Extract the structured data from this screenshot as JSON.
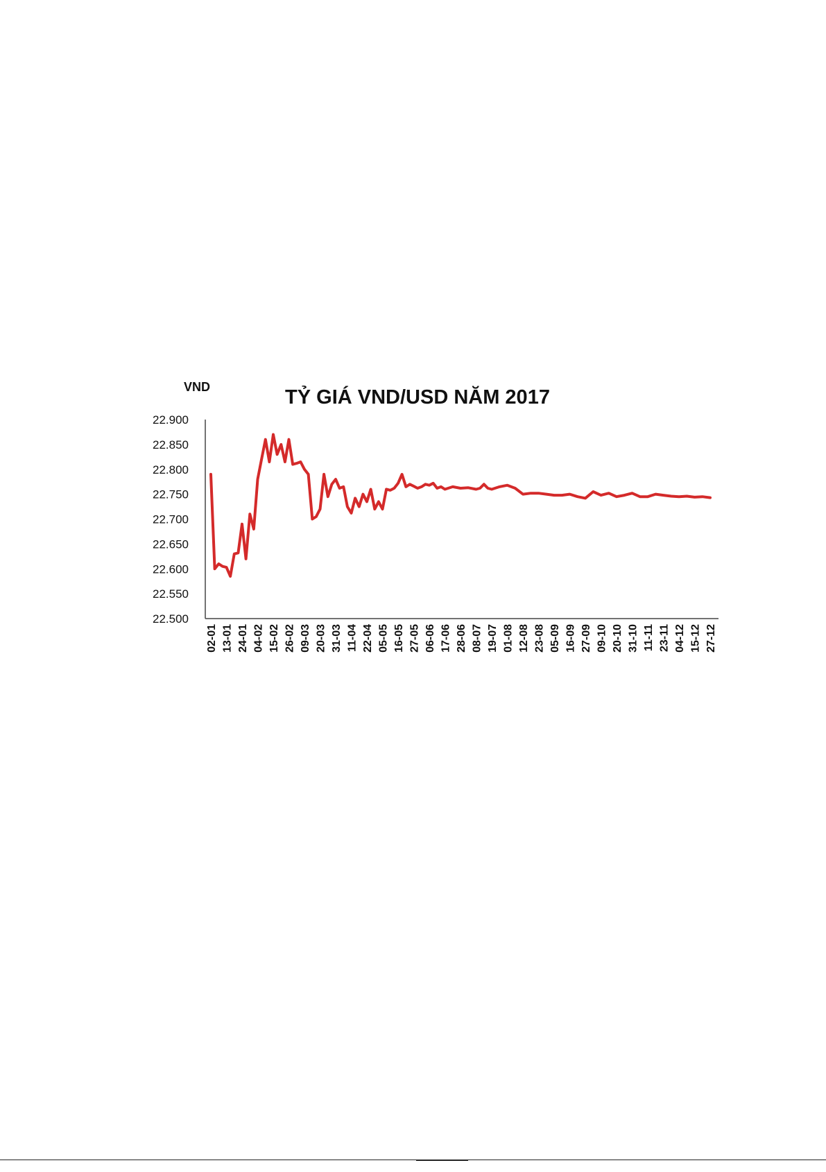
{
  "chart_data": {
    "type": "line",
    "title": "TỶ GIÁ VND/USD NĂM 2017",
    "ylabel": "VND",
    "xlabel": "",
    "ylim": [
      22500,
      22900
    ],
    "yticks": [
      22500,
      22550,
      22600,
      22650,
      22700,
      22750,
      22800,
      22850,
      22900
    ],
    "ytick_labels": [
      "22.500",
      "22.550",
      "22.600",
      "22.650",
      "22.700",
      "22.750",
      "22.800",
      "22.850",
      "22.900"
    ],
    "categories": [
      "02-01",
      "13-01",
      "24-01",
      "04-02",
      "15-02",
      "26-02",
      "09-03",
      "20-03",
      "31-03",
      "11-04",
      "22-04",
      "05-05",
      "16-05",
      "27-05",
      "06-06",
      "17-06",
      "28-06",
      "08-07",
      "19-07",
      "01-08",
      "12-08",
      "23-08",
      "05-09",
      "16-09",
      "27-09",
      "09-10",
      "20-10",
      "31-10",
      "11-11",
      "23-11",
      "04-12",
      "15-12",
      "27-12"
    ],
    "grid": false,
    "legend": "none",
    "series": [
      {
        "color": "#d42a2a",
        "x": [
          0,
          0.25,
          0.5,
          0.75,
          1,
          1.25,
          1.5,
          1.75,
          2,
          2.25,
          2.5,
          2.75,
          3,
          3.25,
          3.5,
          3.75,
          4,
          4.25,
          4.5,
          4.75,
          5,
          5.25,
          5.5,
          5.75,
          6,
          6.25,
          6.5,
          6.75,
          7,
          7.25,
          7.5,
          7.75,
          8,
          8.25,
          8.5,
          8.75,
          9,
          9.25,
          9.5,
          9.75,
          10,
          10.25,
          10.5,
          10.75,
          11,
          11.25,
          11.5,
          11.75,
          12,
          12.25,
          12.5,
          12.75,
          13,
          13.25,
          13.5,
          13.75,
          14,
          14.25,
          14.5,
          14.75,
          15,
          15.5,
          16,
          16.5,
          17,
          17.25,
          17.5,
          17.75,
          18,
          18.5,
          19,
          19.5,
          20,
          20.5,
          21,
          21.5,
          22,
          22.5,
          23,
          23.5,
          24,
          24.5,
          25,
          25.5,
          26,
          26.5,
          27,
          27.5,
          28,
          28.5,
          29,
          29.5,
          30,
          30.5,
          31,
          31.5,
          32
        ],
        "values": [
          22790,
          22600,
          22610,
          22605,
          22603,
          22585,
          22630,
          22632,
          22690,
          22620,
          22710,
          22680,
          22780,
          22820,
          22860,
          22815,
          22870,
          22830,
          22850,
          22815,
          22860,
          22810,
          22812,
          22815,
          22800,
          22790,
          22700,
          22705,
          22720,
          22790,
          22745,
          22770,
          22780,
          22762,
          22765,
          22725,
          22712,
          22742,
          22725,
          22750,
          22735,
          22760,
          22720,
          22735,
          22720,
          22760,
          22758,
          22762,
          22772,
          22790,
          22765,
          22770,
          22766,
          22762,
          22765,
          22770,
          22768,
          22772,
          22762,
          22765,
          22760,
          22765,
          22762,
          22763,
          22760,
          22762,
          22770,
          22762,
          22760,
          22765,
          22768,
          22762,
          22750,
          22752,
          22752,
          22750,
          22748,
          22748,
          22750,
          22745,
          22742,
          22755,
          22748,
          22752,
          22745,
          22748,
          22752,
          22745,
          22745,
          22750,
          22748,
          22746,
          22745,
          22746,
          22744,
          22745,
          22743
        ]
      }
    ]
  }
}
